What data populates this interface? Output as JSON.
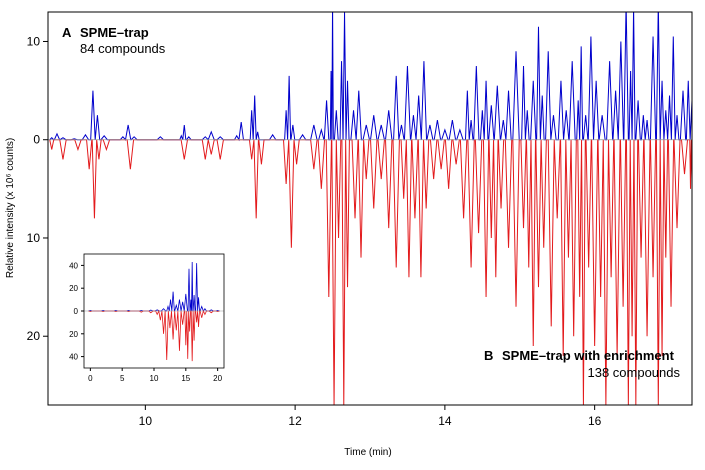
{
  "chart_data": [
    {
      "type": "line",
      "xlabel": "Time (min)",
      "ylabel": "Relative intensity (x 10⁶ counts)",
      "xlim": [
        8.7,
        17.3
      ],
      "ylim": [
        -27,
        13
      ],
      "x_ticks": [
        10,
        12,
        14,
        16
      ],
      "y_ticks": [
        {
          "value": 10,
          "label": "10"
        },
        {
          "value": 0,
          "label": "0"
        },
        {
          "value": -10,
          "label": "10"
        },
        {
          "value": -20,
          "label": "20"
        }
      ],
      "legend": "none",
      "grid": false,
      "panels": [
        {
          "letter": "A",
          "title": "SPME–trap",
          "subtitle": "84 compounds",
          "position": "top-left"
        },
        {
          "letter": "B",
          "title": "SPME–trap with enrichment",
          "subtitle": "138 compounds",
          "position": "bottom-right"
        }
      ],
      "series": [
        {
          "color": "#0000cc",
          "direction": "up",
          "x": [
            8.75,
            8.82,
            8.9,
            9.05,
            9.2,
            9.3,
            9.36,
            9.45,
            9.7,
            9.77,
            9.85,
            10.2,
            10.48,
            10.52,
            10.58,
            10.8,
            10.88,
            11.0,
            11.22,
            11.28,
            11.42,
            11.46,
            11.5,
            11.7,
            11.88,
            11.92,
            11.97,
            12.1,
            12.25,
            12.35,
            12.42,
            12.48,
            12.5,
            12.55,
            12.62,
            12.66,
            12.7,
            12.78,
            12.85,
            12.95,
            13.05,
            13.15,
            13.25,
            13.35,
            13.42,
            13.5,
            13.58,
            13.65,
            13.72,
            13.8,
            13.9,
            14.0,
            14.1,
            14.2,
            14.3,
            14.35,
            14.42,
            14.5,
            14.55,
            14.62,
            14.7,
            14.78,
            14.85,
            14.95,
            15.05,
            15.1,
            15.18,
            15.25,
            15.3,
            15.38,
            15.45,
            15.55,
            15.62,
            15.7,
            15.78,
            15.82,
            15.88,
            15.95,
            16.02,
            16.1,
            16.2,
            16.28,
            16.35,
            16.42,
            16.48,
            16.52,
            16.58,
            16.65,
            16.7,
            16.78,
            16.85,
            16.9,
            16.95,
            17.0,
            17.05,
            17.1,
            17.18,
            17.25,
            17.3
          ],
          "y": [
            0.2,
            0.6,
            0.2,
            0.1,
            0.5,
            5.0,
            2.5,
            0.4,
            0.3,
            1.5,
            0.3,
            0.3,
            0.4,
            1.5,
            0.3,
            0.3,
            0.8,
            0.3,
            0.4,
            1.8,
            3.0,
            4.5,
            0.8,
            0.5,
            3.0,
            6.5,
            1.5,
            0.5,
            1.5,
            1.0,
            4.0,
            7.0,
            14.0,
            3.0,
            8.0,
            13.0,
            6.0,
            3.0,
            5.0,
            1.5,
            2.5,
            1.5,
            3.0,
            6.5,
            1.5,
            7.5,
            2.5,
            4.5,
            8.0,
            1.5,
            2.0,
            1.0,
            2.0,
            1.0,
            5.0,
            2.0,
            7.5,
            3.0,
            6.0,
            3.5,
            5.5,
            2.0,
            5.0,
            9.0,
            7.5,
            3.0,
            6.0,
            11.5,
            4.5,
            9.0,
            2.5,
            6.0,
            3.0,
            8.0,
            4.0,
            9.5,
            2.5,
            10.5,
            6.0,
            2.5,
            8.0,
            5.0,
            10.0,
            14.0,
            7.0,
            13.5,
            4.0,
            2.5,
            2.0,
            10.5,
            14.0,
            6.0,
            3.0,
            4.5,
            10.5,
            2.5,
            5.0,
            6.0,
            4.0
          ]
        },
        {
          "color": "#e31a1c",
          "direction": "down",
          "x": [
            8.75,
            8.9,
            9.1,
            9.25,
            9.32,
            9.38,
            9.48,
            9.8,
            10.52,
            10.8,
            10.88,
            11.0,
            11.42,
            11.48,
            11.55,
            11.88,
            11.95,
            12.02,
            12.25,
            12.35,
            12.45,
            12.52,
            12.58,
            12.65,
            12.7,
            12.8,
            12.88,
            12.95,
            13.05,
            13.15,
            13.25,
            13.35,
            13.45,
            13.52,
            13.6,
            13.68,
            13.75,
            13.85,
            13.95,
            14.05,
            14.15,
            14.25,
            14.35,
            14.45,
            14.55,
            14.62,
            14.68,
            14.75,
            14.85,
            14.95,
            15.05,
            15.12,
            15.18,
            15.25,
            15.32,
            15.42,
            15.5,
            15.58,
            15.65,
            15.72,
            15.8,
            15.85,
            15.92,
            16.0,
            16.08,
            16.15,
            16.22,
            16.3,
            16.38,
            16.45,
            16.5,
            16.55,
            16.62,
            16.7,
            16.78,
            16.85,
            16.9,
            16.95,
            17.02,
            17.1,
            17.2,
            17.28,
            17.3
          ],
          "y": [
            -1.0,
            -2.0,
            -1.0,
            -3.0,
            -8.0,
            -2.0,
            -1.0,
            -3.0,
            -2.0,
            -2.0,
            -1.5,
            -2.0,
            -2.0,
            -8.0,
            -2.5,
            -4.5,
            -11.0,
            -2.5,
            -3.0,
            -5.0,
            -16.0,
            -27.0,
            -10.0,
            -27.0,
            -15.0,
            -8.0,
            -12.0,
            -4.0,
            -7.0,
            -4.0,
            -9.0,
            -13.0,
            -6.0,
            -14.0,
            -8.0,
            -14.0,
            -7.0,
            -4.0,
            -3.0,
            -5.0,
            -2.5,
            -8.0,
            -13.0,
            -9.5,
            -16.0,
            -10.0,
            -14.0,
            -7.0,
            -11.0,
            -17.0,
            -9.0,
            -13.0,
            -21.0,
            -15.0,
            -11.0,
            -19.0,
            -8.0,
            -22.0,
            -12.0,
            -20.0,
            -16.0,
            -27.0,
            -13.0,
            -21.0,
            -16.0,
            -27.0,
            -14.0,
            -22.0,
            -17.0,
            -27.0,
            -20.0,
            -27.0,
            -12.0,
            -20.0,
            -14.0,
            -27.0,
            -22.0,
            -12.0,
            -17.0,
            -9.0,
            -3.5,
            -5.0,
            -4.0
          ]
        }
      ]
    },
    {
      "type": "line",
      "xlim": [
        -1,
        21
      ],
      "ylim": [
        -50,
        50
      ],
      "x_ticks": [
        0,
        5,
        10,
        15,
        20
      ],
      "y_ticks": [
        {
          "value": 40,
          "label": "40"
        },
        {
          "value": 20,
          "label": "20"
        },
        {
          "value": 0,
          "label": "0"
        },
        {
          "value": -20,
          "label": "20"
        },
        {
          "value": -40,
          "label": "40"
        }
      ],
      "grid": false,
      "series": [
        {
          "color": "#0000cc",
          "direction": "up",
          "x": [
            0,
            2,
            4,
            6,
            8,
            9.5,
            10.5,
            11.5,
            12.2,
            12.6,
            13.0,
            13.5,
            14.0,
            14.5,
            15.0,
            15.5,
            15.8,
            16.0,
            16.3,
            16.7,
            17.0,
            17.5,
            18.0,
            19.0,
            20.0
          ],
          "y": [
            0.5,
            0.5,
            0.5,
            0.5,
            0.5,
            0.8,
            1.0,
            2.0,
            4.0,
            10.0,
            17.0,
            5.0,
            10.0,
            8.0,
            15.0,
            37.0,
            10.0,
            43.0,
            14.0,
            42.0,
            12.0,
            4.0,
            2.0,
            1.0,
            0.5
          ]
        },
        {
          "color": "#e31a1c",
          "direction": "down",
          "x": [
            0,
            2,
            4,
            6,
            8,
            9.5,
            10.5,
            11.0,
            11.5,
            12.0,
            12.5,
            13.0,
            13.5,
            14.0,
            14.5,
            15.0,
            15.3,
            15.6,
            16.0,
            16.3,
            16.7,
            17.0,
            17.5,
            18.0,
            19.0,
            20.0
          ],
          "y": [
            -0.5,
            -0.5,
            -0.5,
            -0.5,
            -1.0,
            -1.5,
            -3.0,
            -8.0,
            -20.0,
            -43.0,
            -15.0,
            -25.0,
            -17.0,
            -35.0,
            -12.0,
            -30.0,
            -42.0,
            -18.0,
            -44.0,
            -26.0,
            -10.0,
            -14.0,
            -6.0,
            -3.0,
            -1.5,
            -0.5
          ]
        }
      ]
    }
  ]
}
